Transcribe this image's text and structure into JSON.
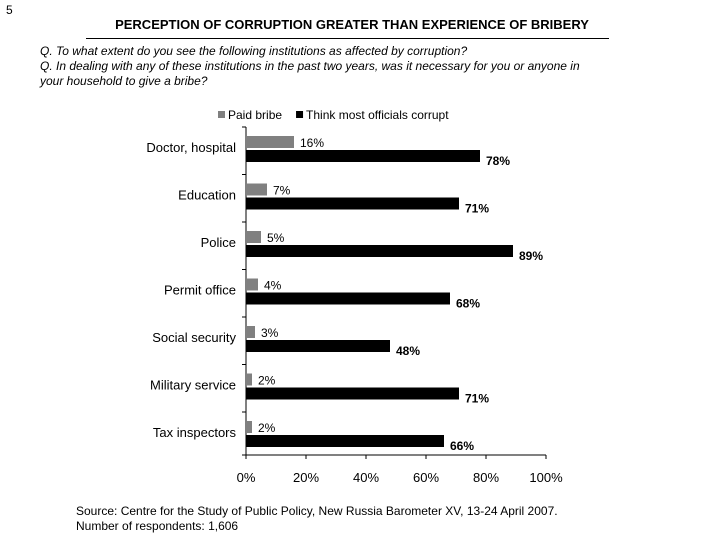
{
  "page_number": "5",
  "title": "PERCEPTION OF CORRUPTION GREATER THAN EXPERIENCE OF BRIBERY",
  "questions": [
    "Q. To what extent do you see the following institutions as affected by corruption?",
    "Q. In dealing with any of these institutions in the past two years, was it necessary for you or anyone in",
    "your household to give a bribe?"
  ],
  "source": {
    "line1": "Source: Centre for the Study of Public Policy, New Russia Barometer XV, 13-24 April 2007.",
    "line2": "Number of respondents: 1,606"
  },
  "chart_data": {
    "type": "bar",
    "orientation": "horizontal",
    "categories": [
      "Doctor, hospital",
      "Education",
      "Police",
      "Permit office",
      "Social security",
      "Military service",
      "Tax inspectors"
    ],
    "series": [
      {
        "name": "Paid bribe",
        "values": [
          16,
          7,
          5,
          4,
          3,
          2,
          2
        ],
        "color": "#808080"
      },
      {
        "name": "Think most officials corrupt",
        "values": [
          78,
          71,
          89,
          68,
          48,
          71,
          66
        ],
        "color": "#000000"
      }
    ],
    "xlim": [
      0,
      100
    ],
    "xticks": [
      0,
      20,
      40,
      60,
      80,
      100
    ],
    "tick_suffix": "%",
    "value_suffix": "%",
    "legend_position": "top",
    "grid": false
  }
}
